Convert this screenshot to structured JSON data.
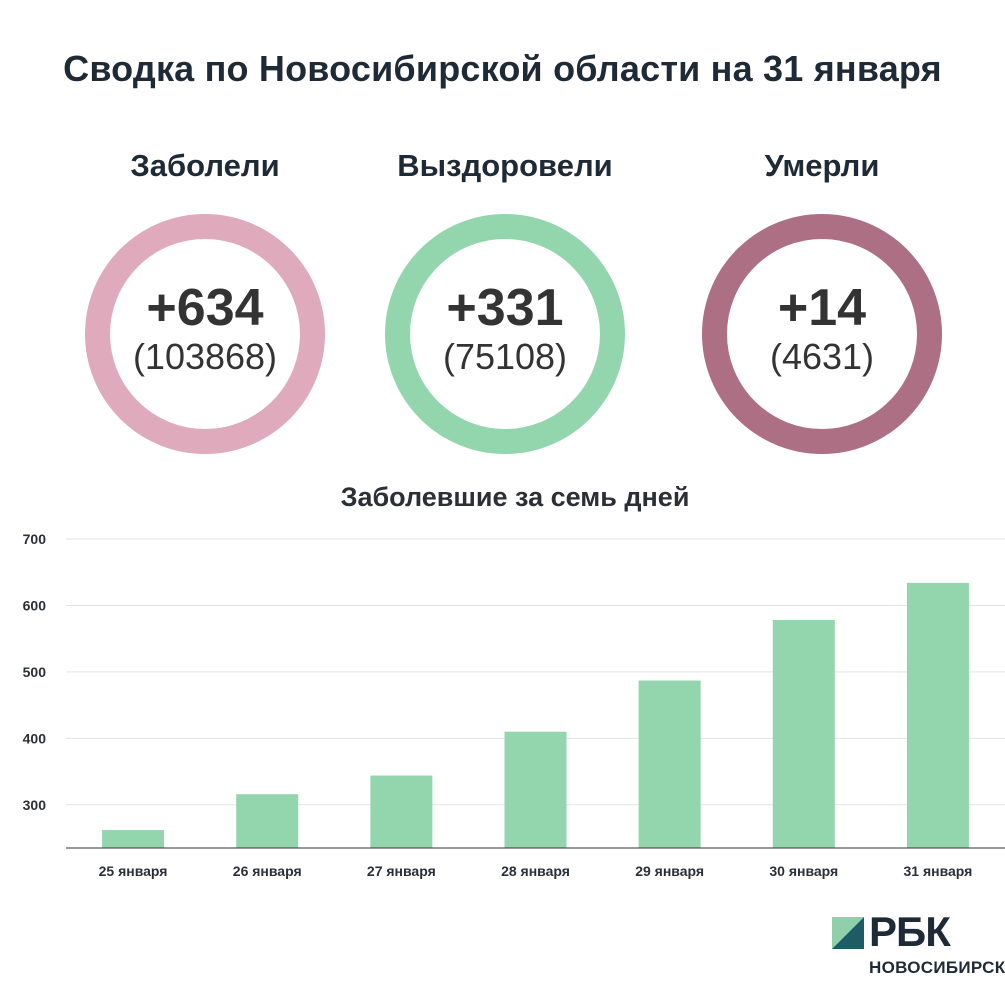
{
  "title": "Сводка по Новосибирской области на 31 января",
  "stats": [
    {
      "label": "Заболели",
      "delta": "+634",
      "total": "(103868)",
      "color": "#dfaabb"
    },
    {
      "label": "Выздоровели",
      "delta": "+331",
      "total": "(75108)",
      "color": "#93d6ae"
    },
    {
      "label": "Умерли",
      "delta": "+14",
      "total": "(4631)",
      "color": "#ad6f83"
    }
  ],
  "chart_data": {
    "type": "bar",
    "title": "Заболевшие за семь дней",
    "categories": [
      "25 января",
      "26 января",
      "27 января",
      "28 января",
      "29 января",
      "30 января",
      "31 января"
    ],
    "values": [
      262,
      316,
      344,
      410,
      487,
      578,
      634
    ],
    "ylim": [
      235,
      700
    ],
    "yticks": [
      300,
      400,
      500,
      600,
      700
    ],
    "grid": true,
    "bar_color": "#93d6ae"
  },
  "logo": {
    "text": "РБК",
    "subtitle": "НОВОСИБИРСК",
    "colors": [
      "#8fd0aa",
      "#1e5b64"
    ]
  }
}
